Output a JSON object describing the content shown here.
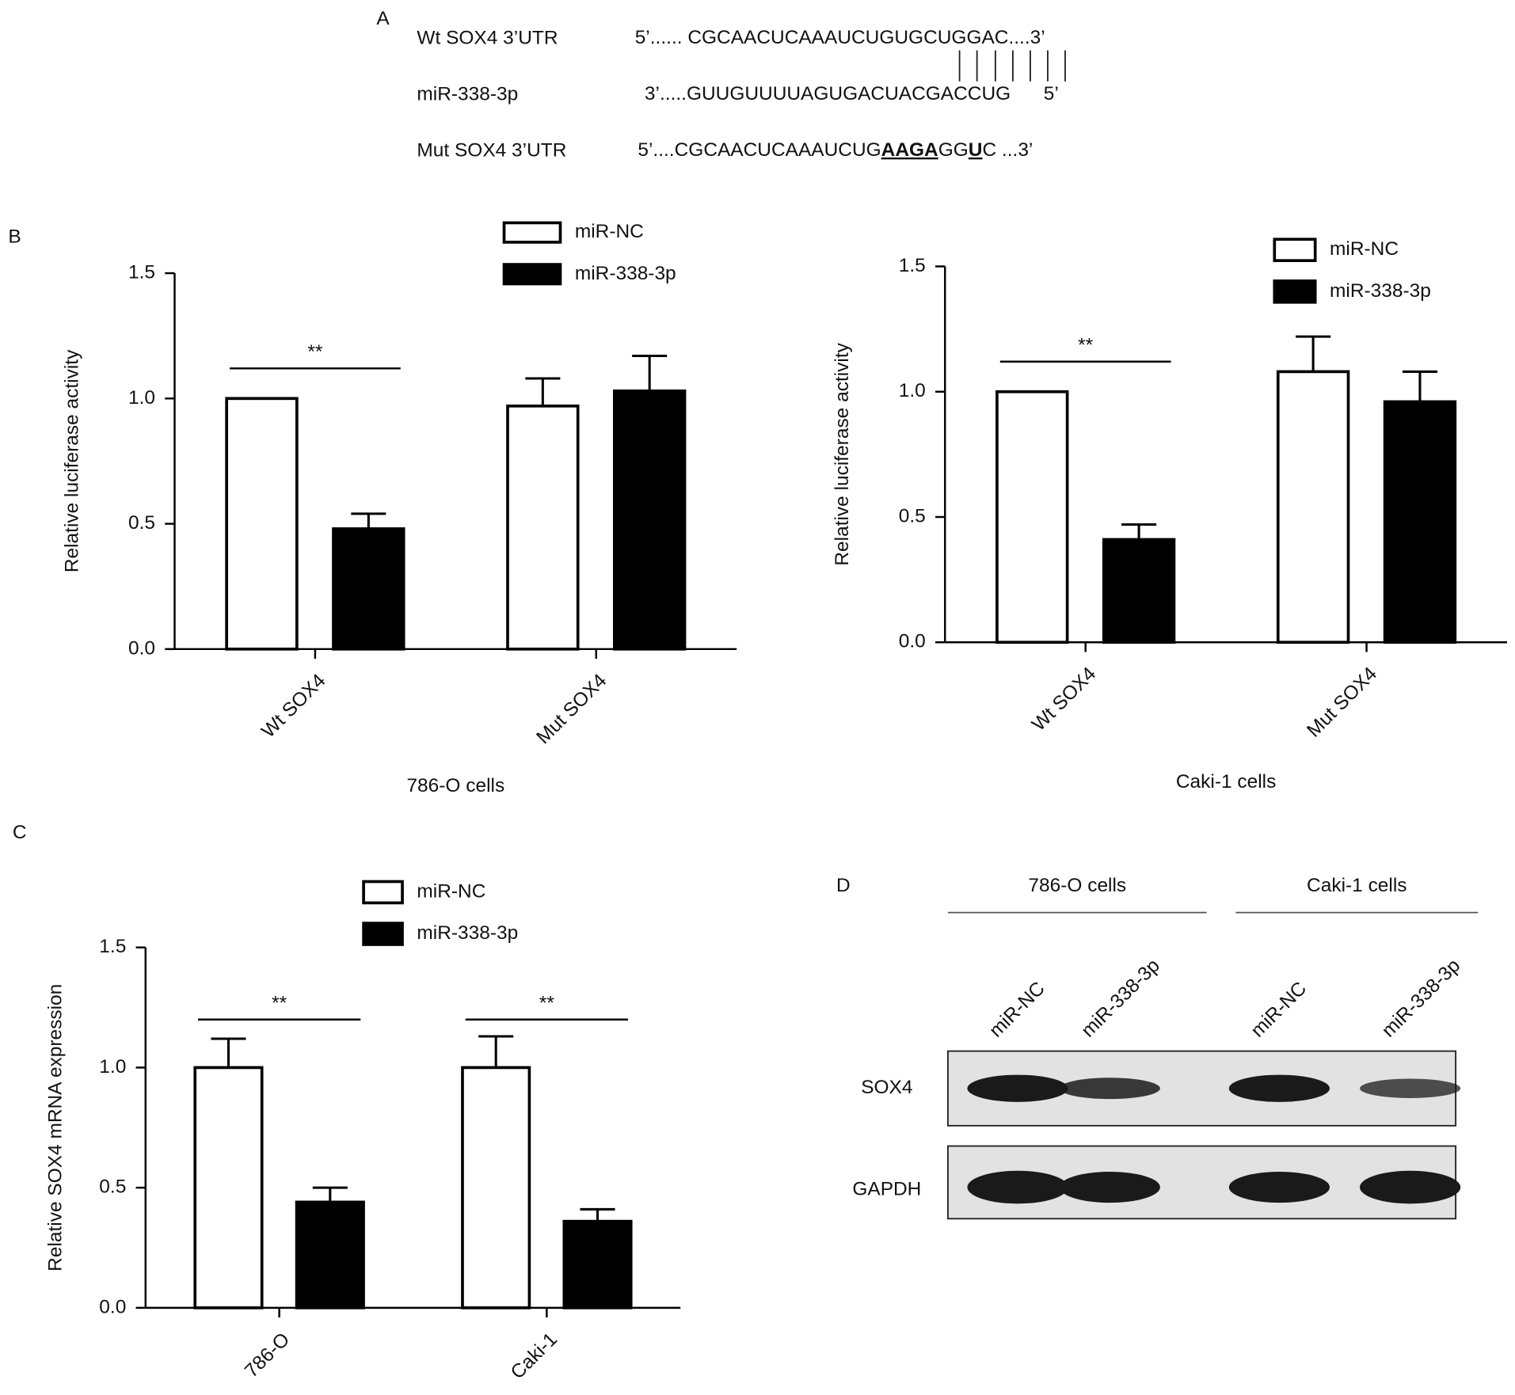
{
  "panel_a": {
    "label": "A",
    "rows": [
      {
        "name": "Wt SOX4 3’UTR",
        "segments": [
          {
            "text": "5’...... CGCAACUCAAAUCUGUGCUGGAC....3’",
            "emphasis": false
          }
        ]
      },
      {
        "name": "miR-338-3p",
        "segments": [
          {
            "text": "3’.....GUUGUUUUAGUGACUACGACCUG",
            "emphasis": false
          },
          {
            "text": "5’",
            "emphasis": false
          }
        ]
      },
      {
        "name": "Mut SOX4 3’UTR",
        "segments": [
          {
            "text": "5’....CGCAACUCAAAUCUG",
            "emphasis": false
          },
          {
            "text": "AAGA",
            "emphasis": true
          },
          {
            "text": "GG",
            "emphasis": false
          },
          {
            "text": "U",
            "emphasis": true
          },
          {
            "text": "C ...3’",
            "emphasis": false
          }
        ]
      }
    ]
  },
  "chart_data": [
    {
      "type": "bar",
      "panel_label": "B",
      "x_label": "786-O cells",
      "y_label": "Relative luciferase activity",
      "categories": [
        "Wt SOX4",
        "Mut SOX4"
      ],
      "series": [
        {
          "name": "miR-NC",
          "color": "#ffffff",
          "values": [
            1.0,
            0.97
          ],
          "errors": [
            0,
            0.11
          ]
        },
        {
          "name": "miR-338-3p",
          "color": "#000000",
          "values": [
            0.48,
            1.03
          ],
          "errors": [
            0.06,
            0.14
          ]
        }
      ],
      "annotations": [
        {
          "text": "**",
          "y": 1.12,
          "at": 0
        }
      ],
      "ylim": [
        0,
        1.5
      ],
      "yticks": [
        {
          "value": 0,
          "label": "0.0"
        },
        0.5,
        {
          "value": 1,
          "label": "1.0"
        },
        1.5
      ],
      "legend": "top"
    },
    {
      "type": "bar",
      "x_label": "Caki-1 cells",
      "y_label": "Relative luciferase activity",
      "categories": [
        "Wt SOX4",
        "Mut SOX4"
      ],
      "series": [
        {
          "name": "miR-NC",
          "color": "#ffffff",
          "values": [
            1.0,
            1.08
          ],
          "errors": [
            0,
            0.14
          ]
        },
        {
          "name": "miR-338-3p",
          "color": "#000000",
          "values": [
            0.41,
            0.96
          ],
          "errors": [
            0.06,
            0.12
          ]
        }
      ],
      "annotations": [
        {
          "text": "**",
          "y": 1.12,
          "at": 0
        }
      ],
      "ylim": [
        0,
        1.5
      ],
      "yticks": [
        {
          "value": 0,
          "label": "0.0"
        },
        0.5,
        {
          "value": 1,
          "label": "1.0"
        },
        1.5
      ],
      "legend": "top"
    },
    {
      "type": "bar",
      "panel_label": "C",
      "y_label": "Relative SOX4 mRNA expression",
      "categories": [
        "786-O",
        "Caki-1"
      ],
      "series": [
        {
          "name": "miR-NC",
          "color": "#ffffff",
          "values": [
            1.0,
            1.0
          ],
          "errors": [
            0.12,
            0.13
          ]
        },
        {
          "name": "miR-338-3p",
          "color": "#000000",
          "values": [
            0.44,
            0.36
          ],
          "errors": [
            0.06,
            0.05
          ]
        }
      ],
      "annotations": [
        {
          "text": "**",
          "y": 1.2,
          "at": 0
        },
        {
          "text": "**",
          "y": 1.2,
          "at": 1
        }
      ],
      "ylim": [
        0,
        1.5
      ],
      "yticks": [
        {
          "value": 0,
          "label": "0.0"
        },
        0.5,
        {
          "value": 1,
          "label": "1.0"
        },
        1.5
      ],
      "legend": "top"
    }
  ],
  "panel_d": {
    "label": "D",
    "groups": [
      "786-O cells",
      "Caki-1 cells"
    ],
    "lanes": [
      "miR-NC",
      "miR-338-3p",
      "miR-NC",
      "miR-338-3p"
    ],
    "rows": [
      "SOX4",
      "GAPDH"
    ]
  }
}
